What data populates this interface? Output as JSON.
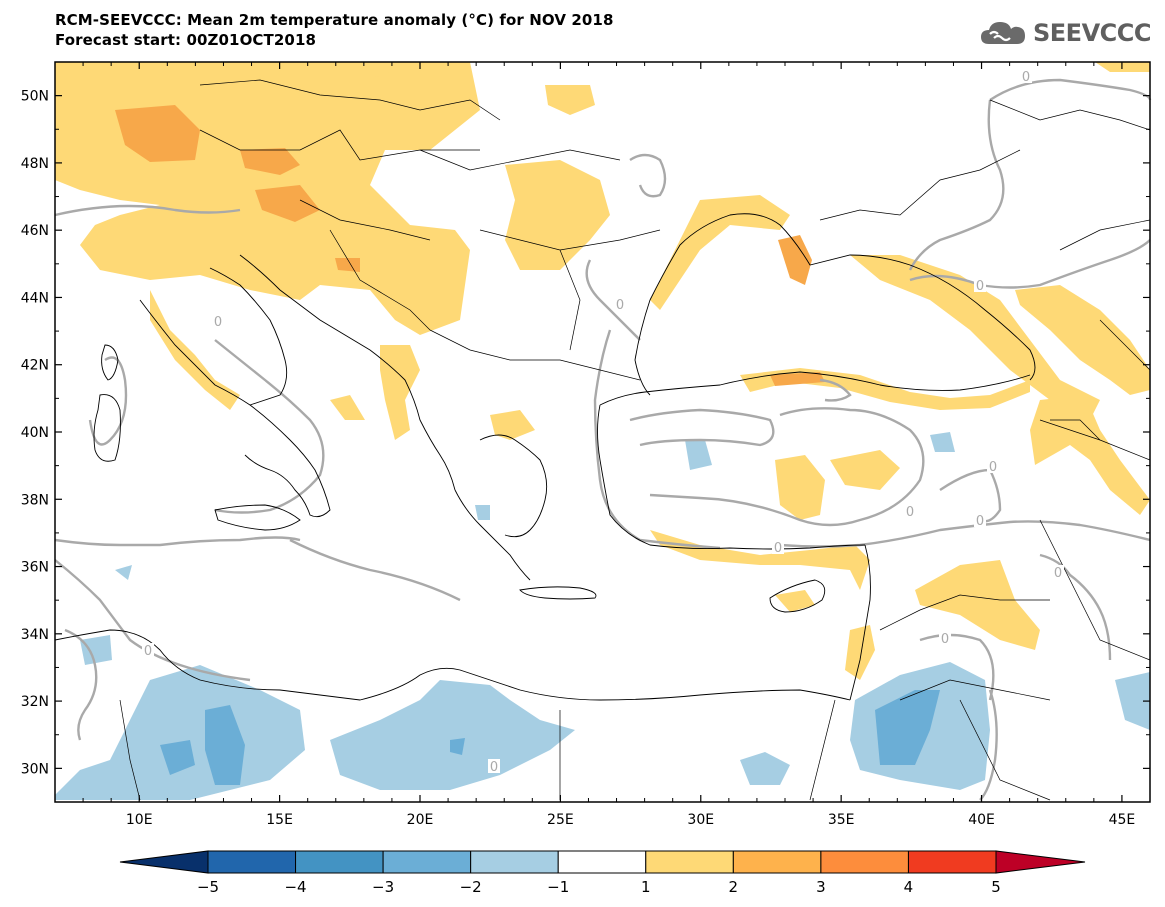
{
  "header": {
    "title": "RCM-SEEVCCC: Mean 2m temperature anomaly (°C) for NOV 2018",
    "subtitle": "Forecast start: 00Z01OCT2018"
  },
  "logo": {
    "text": "SEEVCCC",
    "icon": "cloud-icon"
  },
  "map": {
    "lon_range": [
      7,
      46
    ],
    "lat_range": [
      29,
      51
    ],
    "lat_ticks": [
      {
        "v": 50,
        "label": "50N"
      },
      {
        "v": 48,
        "label": "48N"
      },
      {
        "v": 46,
        "label": "46N"
      },
      {
        "v": 44,
        "label": "44N"
      },
      {
        "v": 42,
        "label": "42N"
      },
      {
        "v": 40,
        "label": "40N"
      },
      {
        "v": 38,
        "label": "38N"
      },
      {
        "v": 36,
        "label": "36N"
      },
      {
        "v": 34,
        "label": "34N"
      },
      {
        "v": 32,
        "label": "32N"
      },
      {
        "v": 30,
        "label": "30N"
      }
    ],
    "lon_ticks": [
      {
        "v": 10,
        "label": "10E"
      },
      {
        "v": 15,
        "label": "15E"
      },
      {
        "v": 20,
        "label": "20E"
      },
      {
        "v": 25,
        "label": "25E"
      },
      {
        "v": 30,
        "label": "30E"
      },
      {
        "v": 35,
        "label": "35E"
      },
      {
        "v": 40,
        "label": "40E"
      },
      {
        "v": 45,
        "label": "45E"
      }
    ],
    "contour_label": "0"
  },
  "colorbar": {
    "labels": [
      "−5",
      "−4",
      "−3",
      "−2",
      "−1",
      "1",
      "2",
      "3",
      "4",
      "5"
    ],
    "colors": [
      "#08306b",
      "#2166ac",
      "#4393c3",
      "#6baed6",
      "#a6cee3",
      "#ffffff",
      "#fed976",
      "#feb24c",
      "#fd8d3c",
      "#f03b20",
      "#bd0026"
    ]
  },
  "palette": {
    "warm1": "#fed976",
    "warm2": "#f7a84a",
    "warm3": "#ef8a3a",
    "cool1": "#a6cee3",
    "cool2": "#6baed6",
    "contour": "#a9a9a9",
    "border": "#000000"
  }
}
